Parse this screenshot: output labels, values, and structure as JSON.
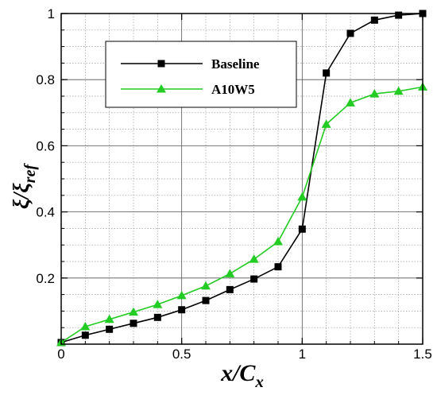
{
  "chart_data": {
    "type": "line",
    "x": [
      0,
      0.1,
      0.2,
      0.3,
      0.4,
      0.5,
      0.6,
      0.7,
      0.8,
      0.9,
      1.0,
      1.1,
      1.2,
      1.3,
      1.4,
      1.5
    ],
    "series": [
      {
        "name": "Baseline",
        "color": "#000000",
        "marker": "square",
        "values": [
          0.005,
          0.027,
          0.045,
          0.063,
          0.081,
          0.104,
          0.132,
          0.165,
          0.197,
          0.234,
          0.348,
          0.82,
          0.94,
          0.98,
          0.995,
          1.0
        ]
      },
      {
        "name": "A10W5",
        "color": "#22cc22",
        "marker": "triangle",
        "values": [
          0.005,
          0.053,
          0.075,
          0.097,
          0.12,
          0.147,
          0.176,
          0.213,
          0.257,
          0.31,
          0.445,
          0.665,
          0.73,
          0.757,
          0.765,
          0.778
        ]
      }
    ],
    "xlabel": {
      "base": "x/C",
      "sub": "x"
    },
    "ylabel": {
      "base": "ξ/ξ",
      "sub": "ref"
    },
    "xlim": [
      0,
      1.5
    ],
    "ylim": [
      0,
      1.0
    ],
    "xticks": [
      0,
      0.5,
      1,
      1.5
    ],
    "yticks": [
      0.2,
      0.4,
      0.6,
      0.8,
      1
    ],
    "x_tick_labels": [
      "0",
      "0.5",
      "1",
      "1.5"
    ],
    "y_tick_labels": [
      "0.2",
      "0.4",
      "0.6",
      "0.8",
      "1"
    ],
    "grid": true,
    "legend_position": "upper-left"
  }
}
